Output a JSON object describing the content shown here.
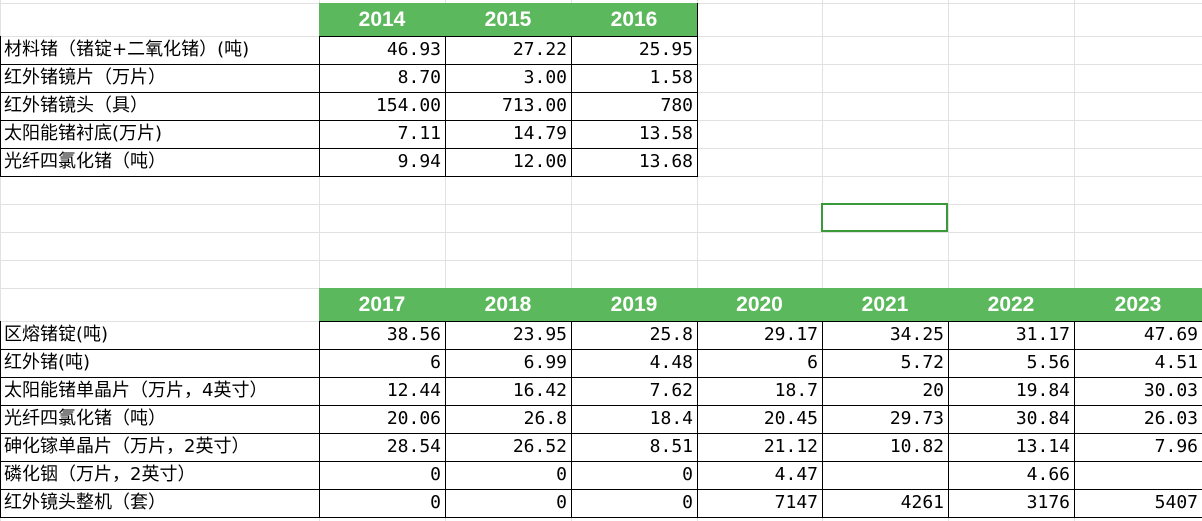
{
  "table1": {
    "header": [
      "2014",
      "2015",
      "2016"
    ],
    "rows": [
      [
        "材料锗（锗锭+二氧化锗）(吨)",
        "46.93",
        "27.22",
        "25.95"
      ],
      [
        "红外锗镜片（万片）",
        "8.70",
        "3.00",
        "1.58"
      ],
      [
        "红外锗镜头（具）",
        "154.00",
        "713.00",
        "780"
      ],
      [
        "太阳能锗衬底(万片)",
        "7.11",
        "14.79",
        "13.58"
      ],
      [
        "光纤四氯化锗（吨）",
        "9.94",
        "12.00",
        "13.68"
      ]
    ]
  },
  "table2": {
    "header": [
      "2017",
      "2018",
      "2019",
      "2020",
      "2021",
      "2022",
      "2023"
    ],
    "rows": [
      [
        "区熔锗锭(吨)",
        "38.56",
        "23.95",
        "25.8",
        "29.17",
        "34.25",
        "31.17",
        "47.69"
      ],
      [
        "红外锗(吨)",
        "6",
        "6.99",
        "4.48",
        "6",
        "5.72",
        "5.56",
        "4.51"
      ],
      [
        "太阳能锗单晶片（万片，4英寸）",
        "12.44",
        "16.42",
        "7.62",
        "18.7",
        "20",
        "19.84",
        "30.03"
      ],
      [
        "光纤四氯化锗（吨）",
        "20.06",
        "26.8",
        "18.4",
        "20.45",
        "29.73",
        "30.84",
        "26.03"
      ],
      [
        "砷化镓单晶片（万片，2英寸）",
        "28.54",
        "26.52",
        "8.51",
        "21.12",
        "10.82",
        "13.14",
        "7.96"
      ],
      [
        "磷化铟（万片，2英寸）",
        "0",
        "0",
        "0",
        "4.47",
        null,
        "4.66",
        null
      ],
      [
        "红外镜头整机（套）",
        "0",
        "0",
        "0",
        "7147",
        "4261",
        "3176",
        "5407"
      ]
    ]
  }
}
